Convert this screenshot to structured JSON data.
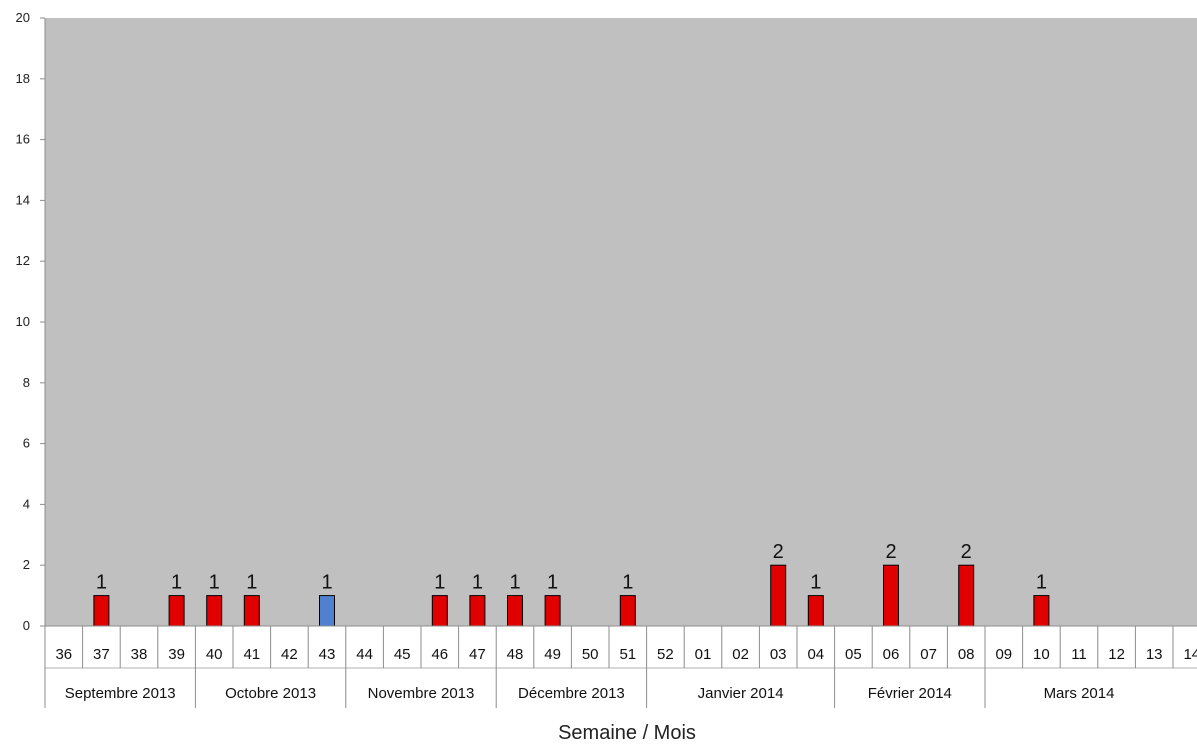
{
  "chart_data": {
    "type": "bar",
    "title": "",
    "xlabel": "Semaine /  Mois",
    "ylabel": "",
    "ylim": [
      0,
      20
    ],
    "yticks": [
      "0",
      "2",
      "4",
      "6",
      "8",
      "10",
      "12",
      "14",
      "16",
      "18",
      "20"
    ],
    "grid": false,
    "legend": "none",
    "categories": [
      "36",
      "37",
      "38",
      "39",
      "40",
      "41",
      "42",
      "43",
      "44",
      "45",
      "46",
      "47",
      "48",
      "49",
      "50",
      "51",
      "52",
      "01",
      "02",
      "03",
      "04",
      "05",
      "06",
      "07",
      "08",
      "09",
      "10",
      "11",
      "12",
      "13",
      "14"
    ],
    "values": [
      0,
      1,
      0,
      1,
      1,
      1,
      0,
      1,
      0,
      0,
      1,
      1,
      1,
      1,
      0,
      1,
      0,
      0,
      0,
      2,
      1,
      0,
      2,
      0,
      2,
      0,
      1,
      0,
      0,
      0,
      0
    ],
    "bar_colors": [
      "red",
      "red",
      "red",
      "red",
      "red",
      "red",
      "red",
      "blue",
      "red",
      "red",
      "red",
      "red",
      "red",
      "red",
      "red",
      "red",
      "red",
      "red",
      "red",
      "red",
      "red",
      "red",
      "red",
      "red",
      "red",
      "red",
      "red",
      "red",
      "red",
      "red",
      "red"
    ],
    "months": [
      {
        "label": "Septembre 2013",
        "weeks": 4
      },
      {
        "label": "Octobre 2013",
        "weeks": 4
      },
      {
        "label": "Novembre 2013",
        "weeks": 4
      },
      {
        "label": "Décembre 2013",
        "weeks": 4
      },
      {
        "label": "Janvier 2014",
        "weeks": 5
      },
      {
        "label": "Février 2014",
        "weeks": 4
      },
      {
        "label": "Mars 2014",
        "weeks": 5
      }
    ],
    "colors": {
      "plot_background": "#c0c0c0",
      "red": "#e00000",
      "blue": "#4f81d0"
    }
  }
}
